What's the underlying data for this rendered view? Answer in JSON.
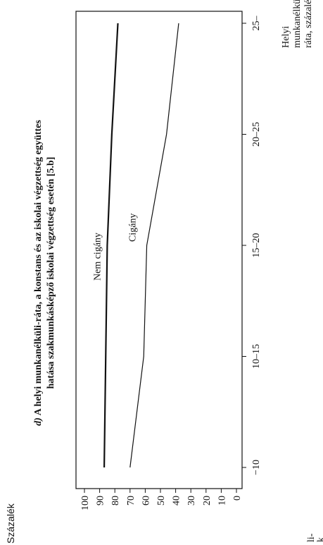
{
  "chart_data": {
    "type": "line",
    "ylabel": "Százalék",
    "xlabel": [
      "Helyi",
      "munkanélküli-",
      "ráta, százalék"
    ],
    "categories": [
      "−10",
      "10–15",
      "15–20",
      "20–25",
      "25–"
    ],
    "ylim": [
      0,
      100
    ],
    "yticks": [
      0,
      10,
      20,
      30,
      40,
      50,
      60,
      70,
      80,
      90,
      100
    ],
    "series": [
      {
        "name": "Nem cigány",
        "values": [
          87,
          86,
          85,
          82,
          78
        ]
      },
      {
        "name": "Cigány",
        "values": [
          70,
          61,
          59,
          46,
          38
        ]
      }
    ],
    "caption": [
      "d) A helyi munkanélküli-ráta, a konstans és az iskolai végzettség együttes",
      "hatása szakmunkásképző iskolai végzettség esetén [5.b]"
    ],
    "grid": false
  },
  "fragments": {
    "left_cutoff_1": "li-",
    "left_cutoff_2": "k"
  }
}
